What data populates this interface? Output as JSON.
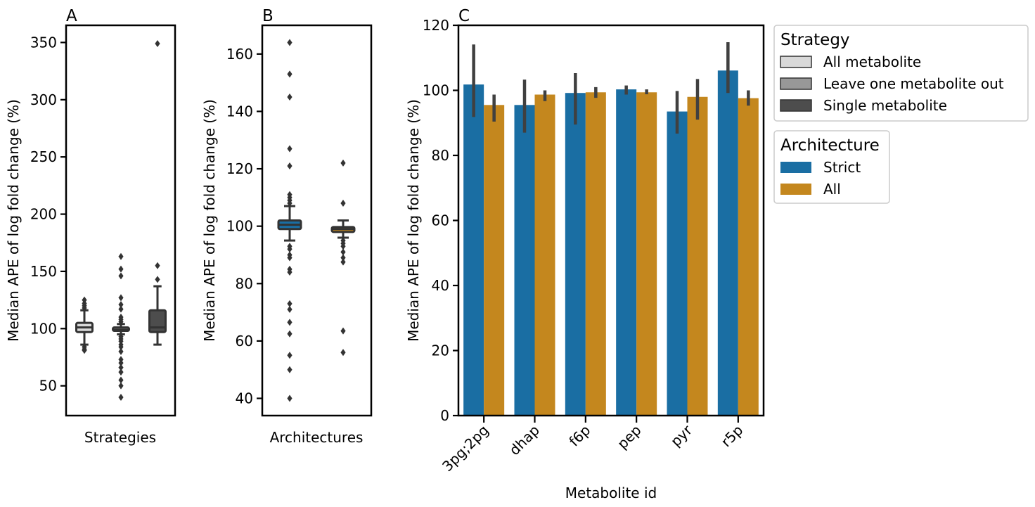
{
  "chart_data": [
    {
      "panel": "A",
      "type": "box",
      "xlabel": "Strategies",
      "ylabel": "Median APE of log fold change (%)",
      "ylim": [
        24,
        365
      ],
      "yticks": [
        50,
        100,
        150,
        200,
        250,
        300,
        350
      ],
      "boxes": [
        {
          "name": "All metabolite",
          "color": "#d9d9d9",
          "q1": 97,
          "median": 101,
          "q3": 105,
          "whisker_low": 86,
          "whisker_high": 116,
          "outliers": [
            118,
            120,
            122,
            125,
            82,
            84,
            81
          ]
        },
        {
          "name": "Leave one metabolite out",
          "color": "#989898",
          "q1": 98,
          "median": 99,
          "q3": 101,
          "whisker_low": 95,
          "whisker_high": 104,
          "outliers": [
            163,
            152,
            146,
            127,
            121,
            117,
            110,
            108,
            106,
            93,
            91,
            89,
            86,
            84,
            80,
            73,
            70,
            66,
            62,
            55,
            50,
            40
          ]
        },
        {
          "name": "Single metabolite",
          "color": "#4d4d4d",
          "q1": 97,
          "median": 101,
          "q3": 116,
          "whisker_low": 86,
          "whisker_high": 137,
          "outliers": [
            349,
            155,
            143
          ]
        }
      ]
    },
    {
      "panel": "B",
      "type": "box",
      "xlabel": "Architectures",
      "ylabel": "Median APE of log fold change (%)",
      "ylim": [
        34,
        170
      ],
      "yticks": [
        40,
        60,
        80,
        100,
        120,
        140,
        160
      ],
      "boxes": [
        {
          "name": "Strict",
          "color": "#1a6ea3",
          "q1": 99,
          "median": 100.5,
          "q3": 102,
          "whisker_low": 95,
          "whisker_high": 107,
          "outliers": [
            164,
            153,
            145,
            127,
            121,
            111,
            110,
            109,
            108,
            93,
            92,
            90,
            89,
            85,
            84,
            73,
            71,
            66.5,
            62.5,
            55,
            50,
            40
          ]
        },
        {
          "name": "All",
          "color": "#c4871e",
          "q1": 98,
          "median": 99,
          "q3": 99.7,
          "whisker_low": 96,
          "whisker_high": 102,
          "outliers": [
            122,
            108,
            95,
            94,
            93,
            91,
            89,
            87.5,
            63.5,
            56
          ]
        }
      ]
    },
    {
      "panel": "C",
      "type": "bar",
      "xlabel": "Metabolite id",
      "ylabel": "Median APE of log fold change (%)",
      "ylim": [
        0,
        120
      ],
      "yticks": [
        0,
        20,
        40,
        60,
        80,
        100,
        120
      ],
      "categories": [
        "3pg;2pg",
        "dhap",
        "f6p",
        "pep",
        "pyr",
        "r5p"
      ],
      "series": [
        {
          "name": "Strict",
          "color": "#1a6ea3",
          "values": [
            101.8,
            95.5,
            99.2,
            100.3,
            93.5,
            106.1
          ],
          "err_low": [
            91.8,
            87.0,
            89.5,
            98.7,
            86.7,
            99.2
          ],
          "err_high": [
            114.1,
            103.3,
            105.3,
            101.5,
            99.8,
            114.8
          ]
        },
        {
          "name": "All",
          "color": "#c4871e",
          "values": [
            95.5,
            98.7,
            99.4,
            99.4,
            98.0,
            97.6
          ],
          "err_low": [
            90.4,
            96.7,
            97.7,
            98.8,
            91.0,
            95.3
          ],
          "err_high": [
            98.7,
            100.0,
            101.0,
            100.3,
            103.5,
            100.0
          ]
        }
      ]
    }
  ],
  "legend_strategy": {
    "title": "Strategy",
    "items": [
      {
        "label": "All metabolite",
        "color": "#d9d9d9"
      },
      {
        "label": "Leave one metabolite out",
        "color": "#989898"
      },
      {
        "label": "Single metabolite",
        "color": "#4d4d4d"
      }
    ]
  },
  "legend_architecture": {
    "title": "Architecture",
    "items": [
      {
        "label": "Strict",
        "color": "#1a6ea3"
      },
      {
        "label": "All",
        "color": "#c4871e"
      }
    ]
  },
  "err_color": "#404040",
  "outline_color": "#333333"
}
